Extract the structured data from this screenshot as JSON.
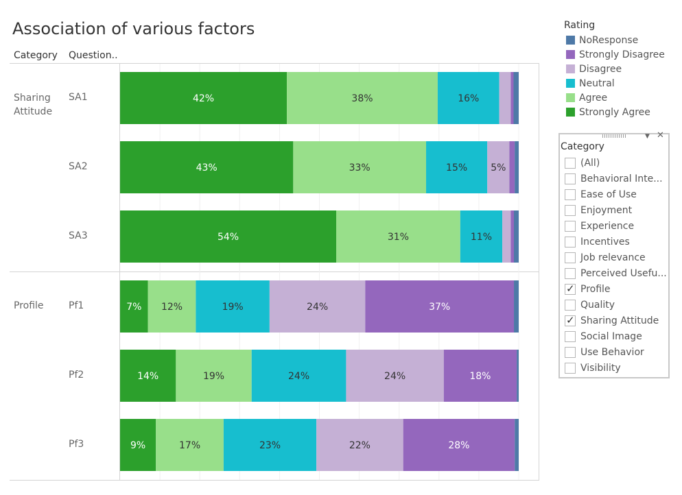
{
  "title": "Association of various factors",
  "headers": {
    "category": "Category",
    "question": "Question.."
  },
  "categories": [
    {
      "label": "Sharing\nAttitude",
      "questions": [
        "SA1",
        "SA2",
        "SA3"
      ]
    },
    {
      "label": "Profile",
      "questions": [
        "Pf1",
        "Pf2",
        "Pf3"
      ]
    }
  ],
  "legend": {
    "title": "Rating",
    "items": [
      {
        "label": "NoResponse",
        "color": "#4e79a7"
      },
      {
        "label": "Strongly Disagree",
        "color": "#9467bd"
      },
      {
        "label": "Disagree",
        "color": "#c5b0d5"
      },
      {
        "label": "Neutral",
        "color": "#17becf"
      },
      {
        "label": "Agree",
        "color": "#98df8a"
      },
      {
        "label": "Strongly Agree",
        "color": "#2ca02c"
      }
    ]
  },
  "filter": {
    "title": "Category",
    "items": [
      {
        "label": "(All)",
        "checked": false
      },
      {
        "label": "Behavioral Inte...",
        "checked": false
      },
      {
        "label": "Ease of Use",
        "checked": false
      },
      {
        "label": "Enjoyment",
        "checked": false
      },
      {
        "label": "Experience",
        "checked": false
      },
      {
        "label": "Incentives",
        "checked": false
      },
      {
        "label": "Job relevance",
        "checked": false
      },
      {
        "label": "Perceived Usefu...",
        "checked": false
      },
      {
        "label": "Profile",
        "checked": true
      },
      {
        "label": "Quality",
        "checked": false
      },
      {
        "label": "Sharing Attitude",
        "checked": true
      },
      {
        "label": "Social Image",
        "checked": false
      },
      {
        "label": "Use Behavior",
        "checked": false
      },
      {
        "label": "Visibility",
        "checked": false
      }
    ]
  },
  "chart_data": {
    "type": "bar",
    "orientation": "horizontal",
    "stacked": true,
    "normalized": true,
    "categories": [
      "SA1",
      "SA2",
      "SA3",
      "Pf1",
      "Pf2",
      "Pf3"
    ],
    "series": [
      {
        "name": "Strongly Agree",
        "color": "#2ca02c",
        "label_color": "#ffffff",
        "values": [
          0.42,
          0.43,
          0.54,
          0.07,
          0.14,
          0.09
        ]
      },
      {
        "name": "Agree",
        "color": "#98df8a",
        "label_color": "#333333",
        "values": [
          0.38,
          0.33,
          0.31,
          0.12,
          0.19,
          0.17
        ]
      },
      {
        "name": "Neutral",
        "color": "#17becf",
        "label_color": "#333333",
        "values": [
          0.155,
          0.152,
          0.105,
          0.185,
          0.237,
          0.233
        ]
      },
      {
        "name": "Disagree",
        "color": "#c5b0d5",
        "label_color": "#333333",
        "values": [
          0.029,
          0.055,
          0.021,
          0.24,
          0.245,
          0.218
        ]
      },
      {
        "name": "Strongly Disagree",
        "color": "#9467bd",
        "label_color": "#ffffff",
        "values": [
          0.007,
          0.013,
          0.008,
          0.373,
          0.183,
          0.28
        ]
      },
      {
        "name": "NoResponse",
        "color": "#4e79a7",
        "label_color": "#ffffff",
        "values": [
          0.013,
          0.01,
          0.012,
          0.012,
          0.005,
          0.01
        ]
      }
    ],
    "data_labels": [
      [
        "42%",
        "38%",
        "16%",
        "",
        "",
        ""
      ],
      [
        "43%",
        "33%",
        "15%",
        "5%",
        "",
        ""
      ],
      [
        "54%",
        "31%",
        "11%",
        "",
        "",
        ""
      ],
      [
        "7%",
        "12%",
        "19%",
        "24%",
        "37%",
        ""
      ],
      [
        "14%",
        "19%",
        "24%",
        "24%",
        "18%",
        ""
      ],
      [
        "9%",
        "17%",
        "23%",
        "22%",
        "28%",
        ""
      ]
    ],
    "xlim": [
      0,
      1
    ],
    "grid": true,
    "legend_position": "right"
  }
}
